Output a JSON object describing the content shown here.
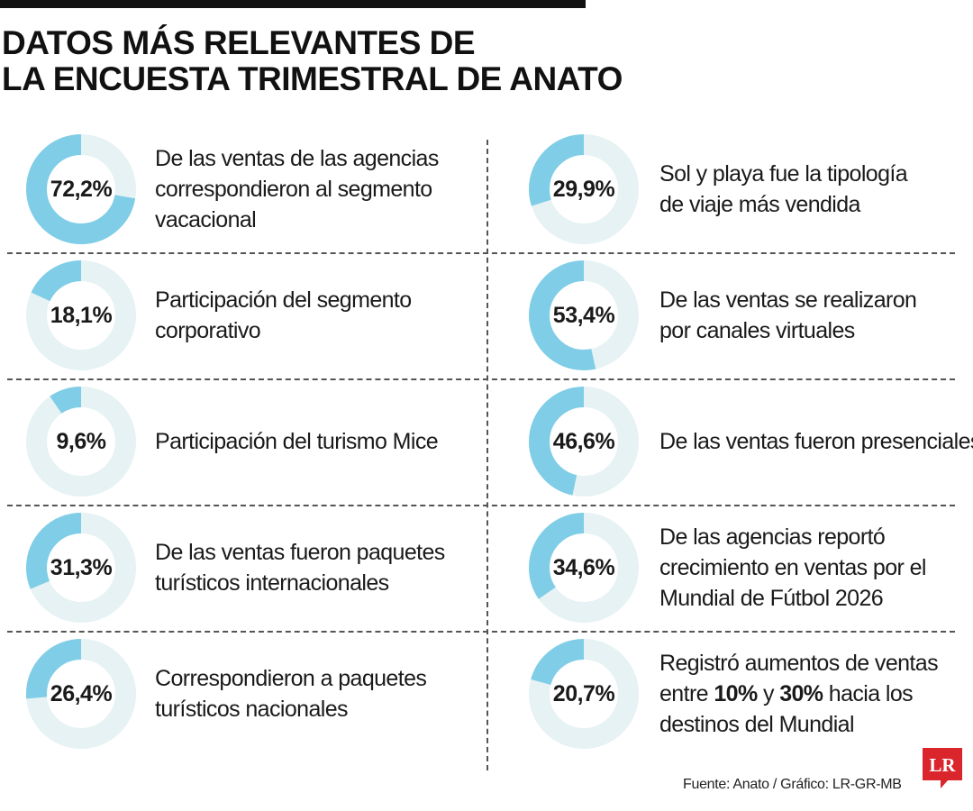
{
  "title_lines": [
    "DATOS MÁS RELEVANTES DE",
    "LA ENCUESTA TRIMESTRAL DE ANATO"
  ],
  "colors": {
    "accent": "#7fcde6",
    "track": "#e6f2f3",
    "logo": "#d9252b"
  },
  "chart_data": {
    "type": "pie",
    "items": [
      {
        "value": 72.2,
        "label": "72,2%",
        "text": [
          "De las ventas de las agencias",
          "correspondieron al segmento",
          "vacacional"
        ]
      },
      {
        "value": 29.9,
        "label": "29,9%",
        "text": [
          "Sol y playa fue la tipología",
          "de viaje más vendida"
        ]
      },
      {
        "value": 18.1,
        "label": "18,1%",
        "text": [
          "Participación del segmento",
          "corporativo"
        ]
      },
      {
        "value": 53.4,
        "label": "53,4%",
        "text": [
          "De las ventas se realizaron",
          "por canales virtuales"
        ]
      },
      {
        "value": 9.6,
        "label": "9,6%",
        "text": [
          "Participación del turismo Mice"
        ]
      },
      {
        "value": 46.6,
        "label": "46,6%",
        "text": [
          "De las ventas fueron presenciales"
        ]
      },
      {
        "value": 31.3,
        "label": "31,3%",
        "text": [
          "De las ventas fueron paquetes",
          "turísticos internacionales"
        ]
      },
      {
        "value": 34.6,
        "label": "34,6%",
        "text": [
          "De las agencias reportó",
          "crecimiento en ventas por el",
          "Mundial de Fútbol 2026"
        ]
      },
      {
        "value": 26.4,
        "label": "26,4%",
        "text": [
          "Correspondieron a paquetes",
          "turísticos nacionales"
        ]
      },
      {
        "value": 20.7,
        "label": "20,7%",
        "text": [
          "Registró aumentos de ventas",
          "entre **10%** y **30%** hacia los",
          "destinos del Mundial"
        ]
      }
    ]
  },
  "source": "Fuente: Anato / Gráfico: LR-GR-MB",
  "logo_text": "LR"
}
